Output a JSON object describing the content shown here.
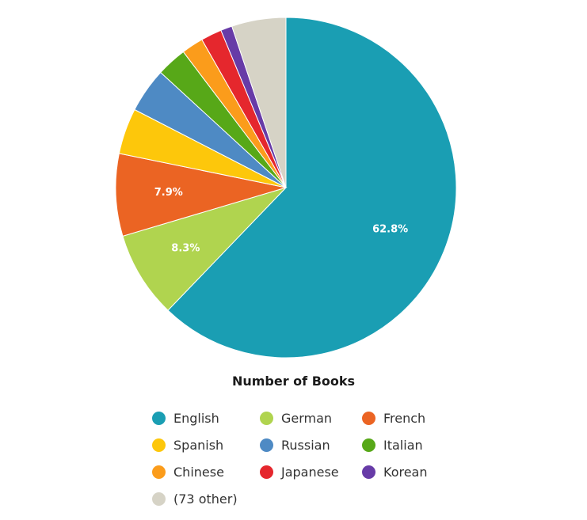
{
  "chart_data": {
    "type": "pie",
    "title": "Number of Books",
    "legend_placement": "bottom",
    "start_angle_deg": 0,
    "direction": "clockwise",
    "slices": [
      {
        "name": "English",
        "value": 62.8,
        "color": "#1a9eb3",
        "label": "62.8%"
      },
      {
        "name": "German",
        "value": 8.3,
        "color": "#b0d44f",
        "label": "8.3%"
      },
      {
        "name": "French",
        "value": 7.9,
        "color": "#eb6423",
        "label": "7.9%"
      },
      {
        "name": "Spanish",
        "value": 4.4,
        "color": "#fdc70b",
        "label": ""
      },
      {
        "name": "Russian",
        "value": 4.3,
        "color": "#4e8ac4",
        "label": ""
      },
      {
        "name": "Italian",
        "value": 2.9,
        "color": "#57a818",
        "label": ""
      },
      {
        "name": "Chinese",
        "value": 2.1,
        "color": "#fb9c1b",
        "label": ""
      },
      {
        "name": "Japanese",
        "value": 2.0,
        "color": "#e5272d",
        "label": ""
      },
      {
        "name": "Korean",
        "value": 1.1,
        "color": "#673ba7",
        "label": ""
      },
      {
        "name": "(73 other)",
        "value": 5.2,
        "color": "#d6d3c6",
        "label": ""
      }
    ]
  }
}
